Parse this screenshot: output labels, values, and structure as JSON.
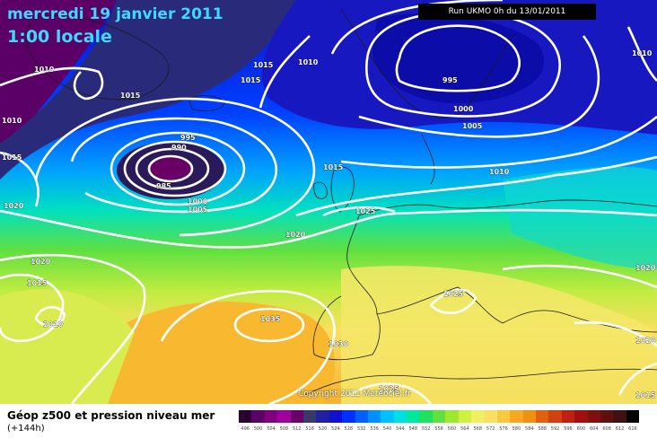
{
  "title": {
    "line1": "mercredi 19 janvier 2011",
    "line2": "1:00 locale"
  },
  "run_label": "Run UKMO 0h du 13/01/2011",
  "copyright": "Copyright 2011 Meteociel.fr",
  "legend": {
    "title": "Géop z500 et pression niveau mer",
    "subtitle": "(+144h)",
    "scale_values": [
      "496",
      "500",
      "504",
      "508",
      "512",
      "516",
      "520",
      "524",
      "528",
      "532",
      "536",
      "540",
      "544",
      "548",
      "552",
      "556",
      "560",
      "564",
      "568",
      "572",
      "576",
      "580",
      "584",
      "588",
      "592",
      "596",
      "600",
      "604",
      "608",
      "612",
      "616"
    ],
    "scale_colors": [
      "#2a0030",
      "#5a0066",
      "#80007f",
      "#a0009e",
      "#6a006a",
      "#3a3a6a",
      "#2020a0",
      "#1010d0",
      "#0030ff",
      "#0060ff",
      "#0090ff",
      "#00c0ff",
      "#00e0e0",
      "#00e8a0",
      "#20e060",
      "#60e040",
      "#a0e830",
      "#d0f040",
      "#f0f060",
      "#f8e060",
      "#f8c840",
      "#f8a820",
      "#f09010",
      "#e06010",
      "#d04010",
      "#c02010",
      "#a01010",
      "#801010",
      "#601010",
      "#401010",
      "#000000"
    ]
  },
  "isobar_labels": [
    {
      "text": "1010"
    },
    {
      "text": "1015"
    },
    {
      "text": "1015"
    },
    {
      "text": "1015"
    },
    {
      "text": "1010"
    },
    {
      "text": "1010"
    },
    {
      "text": "1015"
    },
    {
      "text": "1020"
    },
    {
      "text": "995"
    },
    {
      "text": "990"
    },
    {
      "text": "985"
    },
    {
      "text": "1000"
    },
    {
      "text": "1005"
    },
    {
      "text": "995"
    },
    {
      "text": "1000"
    },
    {
      "text": "1005"
    },
    {
      "text": "1010"
    },
    {
      "text": "1015"
    },
    {
      "text": "1020"
    },
    {
      "text": "1025"
    },
    {
      "text": "1020"
    },
    {
      "text": "1015"
    },
    {
      "text": "1010"
    },
    {
      "text": "1035"
    },
    {
      "text": "1030"
    },
    {
      "text": "1025"
    },
    {
      "text": "1025"
    },
    {
      "text": "1020"
    },
    {
      "text": "1020"
    },
    {
      "text": "1015"
    },
    {
      "text": "1010"
    }
  ]
}
